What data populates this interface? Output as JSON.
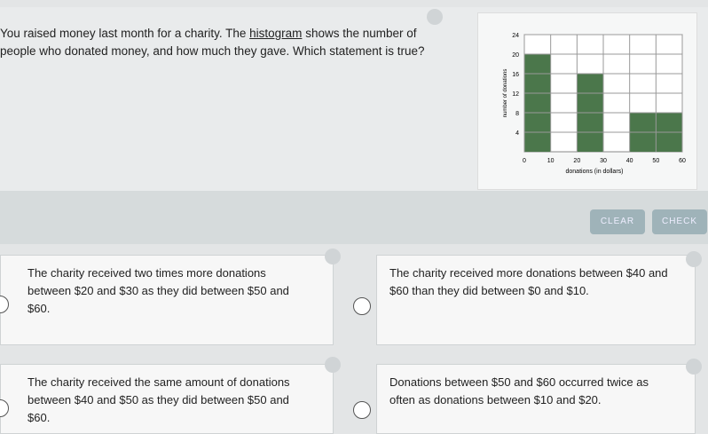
{
  "question": [
    "You raised money last month for a charity. The ",
    "histogram",
    " shows the number of people who donated money, and how much they gave. Which statement is true?"
  ],
  "histogram": {
    "type": "histogram",
    "xlabel": "donations (in dollars)",
    "ylabel": "number of donations",
    "bins": [
      0,
      10,
      20,
      30,
      40,
      50,
      60
    ],
    "values": [
      20,
      0,
      16,
      0,
      8,
      8
    ],
    "xlim": [
      0,
      60
    ],
    "ylim": [
      0,
      24
    ],
    "xticks": [
      0,
      10,
      20,
      30,
      40,
      50,
      60
    ],
    "yticks": [
      4,
      8,
      12,
      16,
      20,
      24
    ],
    "color": "#4b774b",
    "grid": true
  },
  "buttons": [
    "CLEAR",
    "CHECK"
  ],
  "choices": [
    "The charity received two times more donations between $20 and $30 as they did between $50 and $60.",
    "The charity received more donations between $40 and $60 than they did between $0 and $10.",
    "The charity received the same amount of donations between $40 and $50 as they did between $50 and $60.",
    "Donations between $50 and $60 occurred twice as often as donations between $10 and $20."
  ]
}
